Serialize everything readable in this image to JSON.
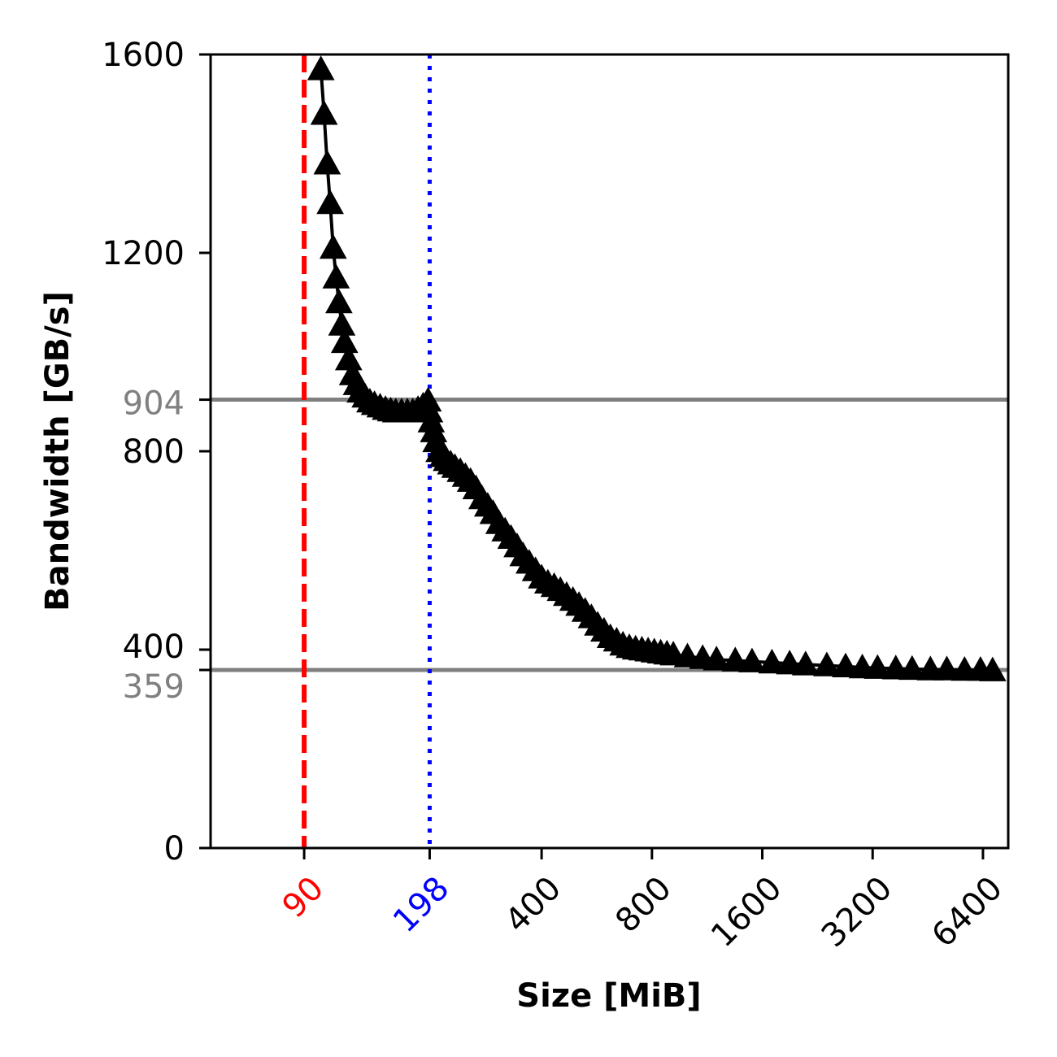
{
  "chart_data": {
    "type": "line",
    "xlabel": "Size [MiB]",
    "ylabel": "Bandwidth [GB/s]",
    "xscale": "log2",
    "xlim": [
      50,
      7500
    ],
    "ylim": [
      0,
      1600
    ],
    "grid": false,
    "legend": "none",
    "y_ticks": [
      {
        "value": 0,
        "label": "0",
        "color": "#000000"
      },
      {
        "value": 359,
        "label": "359",
        "color": "#808080"
      },
      {
        "value": 400,
        "label": "400",
        "color": "#000000"
      },
      {
        "value": 800,
        "label": "800",
        "color": "#000000"
      },
      {
        "value": 904,
        "label": "904",
        "color": "#808080"
      },
      {
        "value": 1200,
        "label": "1200",
        "color": "#000000"
      },
      {
        "value": 1600,
        "label": "1600",
        "color": "#000000"
      }
    ],
    "x_ticks": [
      {
        "value": 90,
        "label": "90",
        "color": "#ff0000"
      },
      {
        "value": 198,
        "label": "198",
        "color": "#0000ff"
      },
      {
        "value": 400,
        "label": "400",
        "color": "#000000"
      },
      {
        "value": 800,
        "label": "800",
        "color": "#000000"
      },
      {
        "value": 1600,
        "label": "1600",
        "color": "#000000"
      },
      {
        "value": 3200,
        "label": "3200",
        "color": "#000000"
      },
      {
        "value": 6400,
        "label": "6400",
        "color": "#000000"
      }
    ],
    "reference_lines": [
      {
        "orientation": "horizontal",
        "value": 904,
        "color": "#808080",
        "style": "solid"
      },
      {
        "orientation": "horizontal",
        "value": 359,
        "color": "#808080",
        "style": "solid"
      },
      {
        "orientation": "vertical",
        "value": 90,
        "color": "#ff0000",
        "style": "dashed"
      },
      {
        "orientation": "vertical",
        "value": 198,
        "color": "#0000ff",
        "style": "dotted"
      }
    ],
    "series": [
      {
        "color": "#000000",
        "marker": "triangle-up",
        "x": [
          100,
          102,
          104,
          106,
          108,
          110,
          112,
          114,
          116,
          119,
          122,
          125,
          128,
          132,
          136,
          140,
          145,
          150,
          155,
          160,
          166,
          172,
          178,
          184,
          190,
          196,
          198,
          200,
          203,
          206,
          210,
          215,
          220,
          226,
          232,
          240,
          248,
          256,
          265,
          275,
          285,
          295,
          306,
          318,
          330,
          343,
          356,
          370,
          385,
          400,
          416,
          433,
          450,
          468,
          487,
          506,
          526,
          547,
          569,
          592,
          616,
          641,
          667,
          694,
          722,
          751,
          781,
          812,
          845,
          879,
          915,
          1000,
          1100,
          1200,
          1350,
          1500,
          1700,
          1900,
          2100,
          2400,
          2700,
          3000,
          3300,
          3700,
          4100,
          4600,
          5100,
          5700,
          6300,
          6800
        ],
        "y": [
          1570,
          1480,
          1380,
          1300,
          1210,
          1150,
          1100,
          1055,
          1020,
          985,
          955,
          935,
          920,
          910,
          900,
          895,
          890,
          885,
          882,
          880,
          880,
          880,
          880,
          885,
          892,
          902,
          880,
          860,
          840,
          820,
          800,
          790,
          782,
          775,
          768,
          760,
          750,
          740,
          725,
          705,
          690,
          675,
          655,
          640,
          625,
          608,
          590,
          575,
          560,
          545,
          535,
          528,
          520,
          510,
          500,
          490,
          478,
          465,
          450,
          438,
          425,
          418,
          410,
          405,
          402,
          400,
          398,
          396,
          394,
          392,
          390,
          386,
          383,
          380,
          378,
          376,
          374,
          372,
          370,
          368,
          366,
          364,
          363,
          362,
          361,
          360,
          360,
          359,
          359,
          358
        ]
      }
    ]
  }
}
